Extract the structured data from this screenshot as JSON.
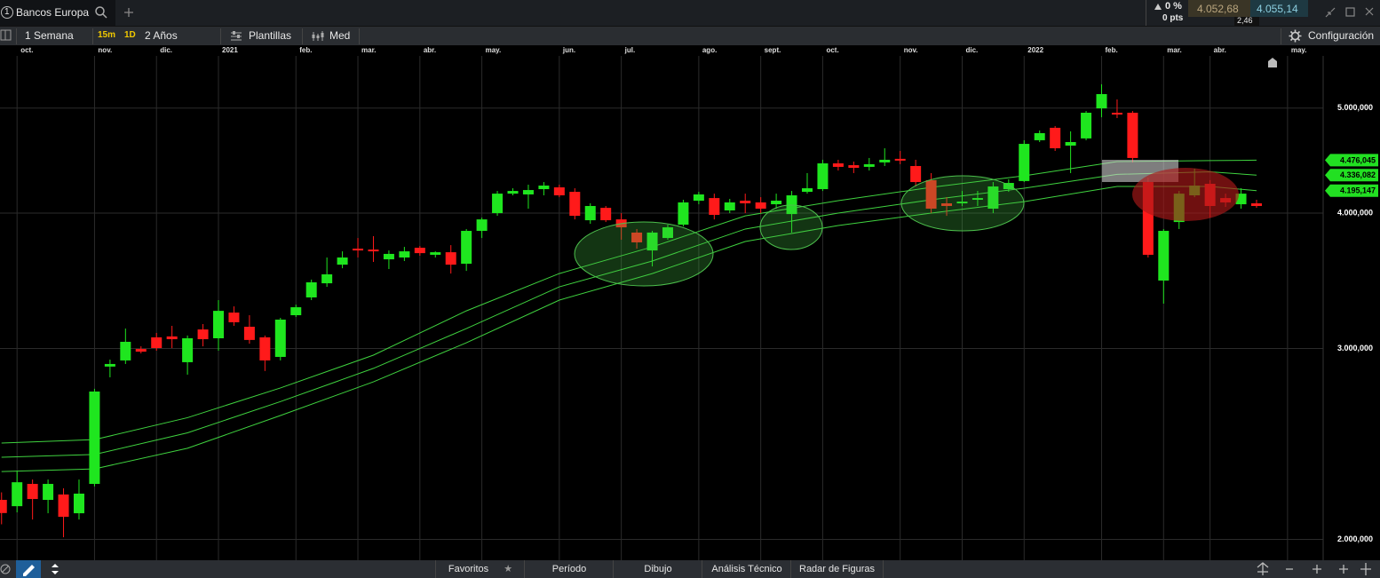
{
  "header": {
    "tab_number": "1",
    "tab_title": "Bancos Europa",
    "change_pct": "0 %",
    "change_pts": "0 pts",
    "bid": "4.052,68",
    "ask": "4.055,14",
    "spread": "2,46"
  },
  "toolbar": {
    "period": "1 Semana",
    "interval_short": "15m",
    "interval_day": "1D",
    "range": "2 Años",
    "templates": "Plantillas",
    "indicators": "Med",
    "settings": "Configuración"
  },
  "chart_data": {
    "type": "candlestick",
    "y_scale": "log",
    "grid": true,
    "up_color": "#1fe61f",
    "down_color": "#ff1a1a",
    "xlim": [
      -0.1,
      85.3
    ],
    "ylim": [
      1924000,
      5586000
    ],
    "yticks": [
      {
        "value": 2000000,
        "label": "2.000,000"
      },
      {
        "value": 3000000,
        "label": "3.000,000"
      },
      {
        "value": 4000000,
        "label": "4.000,000"
      },
      {
        "value": 5000000,
        "label": "5.000,000"
      }
    ],
    "xticks": [
      {
        "value": 1,
        "label": "oct."
      },
      {
        "value": 6,
        "label": "nov."
      },
      {
        "value": 10,
        "label": "dic."
      },
      {
        "value": 14,
        "label": "2021"
      },
      {
        "value": 19,
        "label": "feb."
      },
      {
        "value": 23,
        "label": "mar."
      },
      {
        "value": 27,
        "label": "abr."
      },
      {
        "value": 31,
        "label": "may."
      },
      {
        "value": 36,
        "label": "jun."
      },
      {
        "value": 40,
        "label": "jul."
      },
      {
        "value": 45,
        "label": "ago."
      },
      {
        "value": 49,
        "label": "sept."
      },
      {
        "value": 53,
        "label": "oct."
      },
      {
        "value": 58,
        "label": "nov."
      },
      {
        "value": 62,
        "label": "dic."
      },
      {
        "value": 66,
        "label": "2022"
      },
      {
        "value": 71,
        "label": "feb."
      },
      {
        "value": 75,
        "label": "mar."
      },
      {
        "value": 78,
        "label": "abr."
      },
      {
        "value": 83,
        "label": "may."
      }
    ],
    "open": [
      2175000,
      2146000,
      2250000,
      2175000,
      2200000,
      2114000,
      2250000,
      2887000,
      2925000,
      2997000,
      3072000,
      3078000,
      2914000,
      3124000,
      3066000,
      3238000,
      3142000,
      3072000,
      2947000,
      3220000,
      3344000,
      3446000,
      3585000,
      3709000,
      3702000,
      3626000,
      3640000,
      3716000,
      3661000,
      3681000,
      3592000,
      3852000,
      4000000,
      4169000,
      4162000,
      4209000,
      4225000,
      4185000,
      3940000,
      4045000,
      3947000,
      3838000,
      3695000,
      3794000,
      3903000,
      4107000,
      4130000,
      4023000,
      4107000,
      4092000,
      4076000,
      3992000,
      4185000,
      4209000,
      4446000,
      4429000,
      4413000,
      4455000,
      4489000,
      4421000,
      4290000,
      4084000,
      4084000,
      4115000,
      4038000,
      4209000,
      4282000,
      4670000,
      4795000,
      4617000,
      4688000,
      4997000,
      4951000,
      4951000,
      4273000,
      3466000,
      3925000,
      4154000,
      4257000,
      4130000,
      4076000,
      4084000
    ],
    "high": [
      2210000,
      2314000,
      2271000,
      2271000,
      2229000,
      2271000,
      2754000,
      2930000,
      3130000,
      3014000,
      3101000,
      3148000,
      3084000,
      3160000,
      3325000,
      3281000,
      3220000,
      3084000,
      3202000,
      3293000,
      3473000,
      3640000,
      3688000,
      3794000,
      3809000,
      3695000,
      3723000,
      3730000,
      3688000,
      3737000,
      3867000,
      3962000,
      4193000,
      4217000,
      4249000,
      4273000,
      4249000,
      4217000,
      4084000,
      4061000,
      4000000,
      3867000,
      3852000,
      3903000,
      4115000,
      4185000,
      4169000,
      4123000,
      4169000,
      4138000,
      4169000,
      4193000,
      4355000,
      4480000,
      4480000,
      4463000,
      4497000,
      4591000,
      4565000,
      4480000,
      4355000,
      4138000,
      4193000,
      4193000,
      4273000,
      4298000,
      4670000,
      4768000,
      4813000,
      4759000,
      4969000,
      5260000,
      5093000,
      4969000,
      4314000,
      3867000,
      4193000,
      4396000,
      4290000,
      4169000,
      4217000,
      4115000
    ],
    "low": [
      2065000,
      2118000,
      2086000,
      2114000,
      2009000,
      2086000,
      2238000,
      2822000,
      2903000,
      2969000,
      2986000,
      3003000,
      2838000,
      3014000,
      2986000,
      3148000,
      3031000,
      2860000,
      2925000,
      3208000,
      3325000,
      3420000,
      3558000,
      3640000,
      3606000,
      3552000,
      3613000,
      3654000,
      3640000,
      3518000,
      3538000,
      3794000,
      3977000,
      4154000,
      4038000,
      4154000,
      4138000,
      3947000,
      3910000,
      3925000,
      3780000,
      3709000,
      3572000,
      3780000,
      3888000,
      4076000,
      3947000,
      4000000,
      4000000,
      4000000,
      4038000,
      3838000,
      4169000,
      4193000,
      4379000,
      4355000,
      4379000,
      4421000,
      4438000,
      4233000,
      4000000,
      3977000,
      4061000,
      4061000,
      4000000,
      4185000,
      4273000,
      4652000,
      4565000,
      4355000,
      4670000,
      4904000,
      4895000,
      4455000,
      3640000,
      3300000,
      3867000,
      4138000,
      3962000,
      4053000,
      4038000,
      4045000
    ],
    "close": [
      2115000,
      2258000,
      2179000,
      2250000,
      2098000,
      2204000,
      2738000,
      2903000,
      3043000,
      2980000,
      3003000,
      3060000,
      3066000,
      3060000,
      3250000,
      3172000,
      3055000,
      2925000,
      3190000,
      3275000,
      3453000,
      3512000,
      3640000,
      3695000,
      3688000,
      3668000,
      3688000,
      3674000,
      3681000,
      3585000,
      3852000,
      3947000,
      4169000,
      4193000,
      4201000,
      4241000,
      4154000,
      3977000,
      4061000,
      3940000,
      3881000,
      3759000,
      3838000,
      3881000,
      4092000,
      4162000,
      3985000,
      4092000,
      4084000,
      4038000,
      4107000,
      4154000,
      4217000,
      4446000,
      4413000,
      4404000,
      4438000,
      4480000,
      4472000,
      4273000,
      4038000,
      4061000,
      4099000,
      4130000,
      4233000,
      4265000,
      4634000,
      4741000,
      4591000,
      4652000,
      4951000,
      5151000,
      4932000,
      4497000,
      3661000,
      3852000,
      4169000,
      4241000,
      4061000,
      4092000,
      4169000,
      4061000
    ],
    "overlays": [
      {
        "type": "line",
        "color": "#3fd23f",
        "x": [
          0,
          6,
          12,
          18,
          24,
          30,
          36,
          42,
          48,
          54,
          60,
          66,
          72,
          78,
          81
        ],
        "values": [
          2454000,
          2472000,
          2590000,
          2759000,
          2958000,
          3250000,
          3518000,
          3723000,
          3977000,
          4107000,
          4225000,
          4330000,
          4463000,
          4472000,
          4476045
        ],
        "value_labels": [
          null,
          null,
          null,
          null,
          null,
          null,
          null,
          null,
          null,
          null,
          null,
          null,
          null,
          null,
          "4.476,045"
        ]
      },
      {
        "type": "line",
        "color": "#3fd23f",
        "x": [
          0,
          6,
          12,
          18,
          24,
          30,
          36,
          42,
          48,
          54,
          60,
          66,
          72,
          78,
          81
        ],
        "values": [
          2381000,
          2395000,
          2508000,
          2680000,
          2876000,
          3130000,
          3420000,
          3613000,
          3867000,
          4000000,
          4115000,
          4217000,
          4343000,
          4367000,
          4336082
        ],
        "value_labels": [
          null,
          null,
          null,
          null,
          null,
          null,
          null,
          null,
          null,
          null,
          null,
          null,
          null,
          null,
          "4.336,082"
        ]
      },
      {
        "type": "line",
        "color": "#3fd23f",
        "x": [
          0,
          6,
          12,
          18,
          24,
          30,
          36,
          42,
          48,
          54,
          60,
          66,
          72,
          78,
          81
        ],
        "values": [
          2310000,
          2323000,
          2427000,
          2602000,
          2795000,
          3037000,
          3325000,
          3518000,
          3766000,
          3896000,
          4000000,
          4099000,
          4233000,
          4233000,
          4195147
        ],
        "value_labels": [
          null,
          null,
          null,
          null,
          null,
          null,
          null,
          null,
          null,
          null,
          null,
          null,
          null,
          null,
          "4.195,147"
        ]
      }
    ]
  },
  "footer": {
    "tabs": [
      "Favoritos",
      "Período",
      "Dibujo",
      "Análisis Técnico",
      "Radar de Figuras"
    ]
  }
}
